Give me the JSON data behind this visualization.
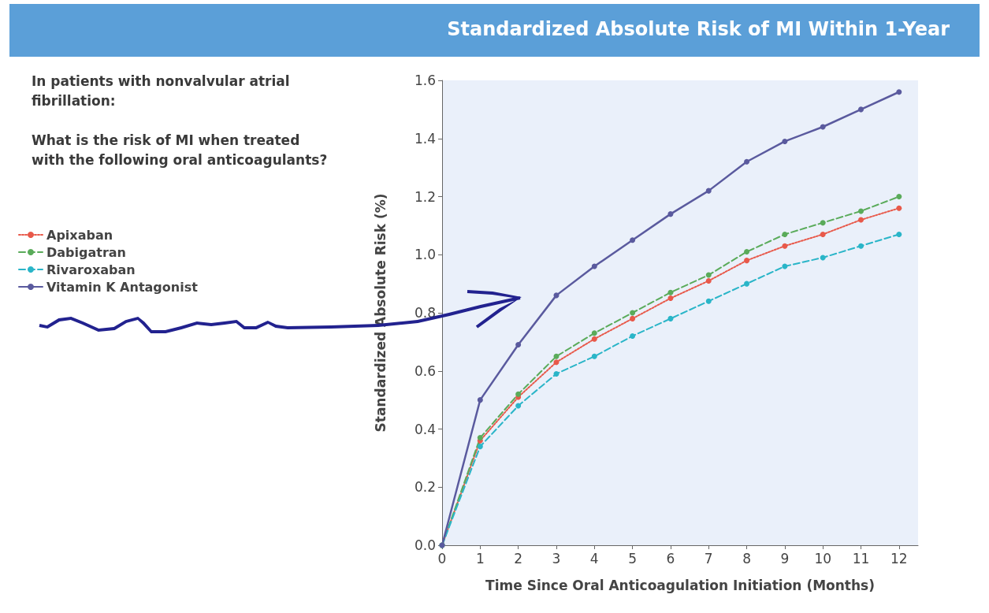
{
  "chart_data": {
    "type": "line",
    "title": "Standardized Absolute Risk of MI Within 1-Year",
    "xlabel": "Time Since Oral Anticoagulation Initiation (Months)",
    "ylabel": "Standardized Absolute Risk (%)",
    "annotations": [
      "In patients with nonvalvular atrial fibrillation:",
      "What is the risk of MI when treated with the following oral anticoagulants?"
    ],
    "x": [
      0,
      1,
      2,
      3,
      4,
      5,
      6,
      7,
      8,
      9,
      10,
      11,
      12
    ],
    "series": [
      {
        "name": "Apixaban",
        "color": "#e8594a",
        "line_style": "dotted",
        "values": [
          0,
          0.36,
          0.51,
          0.63,
          0.71,
          0.78,
          0.85,
          0.91,
          0.98,
          1.03,
          1.07,
          1.12,
          1.16
        ]
      },
      {
        "name": "Dabigatran",
        "color": "#5aab5a",
        "line_style": "dashed",
        "values": [
          0,
          0.37,
          0.52,
          0.65,
          0.73,
          0.8,
          0.87,
          0.93,
          1.01,
          1.07,
          1.11,
          1.15,
          1.2
        ]
      },
      {
        "name": "Rivaroxaban",
        "color": "#2ab5c8",
        "line_style": "dashed",
        "values": [
          0,
          0.34,
          0.48,
          0.59,
          0.65,
          0.72,
          0.78,
          0.84,
          0.9,
          0.96,
          0.99,
          1.03,
          1.07
        ]
      },
      {
        "name": "Vitamin K Antagonist",
        "color": "#5a5a9e",
        "line_style": "solid",
        "values": [
          0,
          0.5,
          0.69,
          0.86,
          0.96,
          1.05,
          1.14,
          1.22,
          1.32,
          1.39,
          1.44,
          1.5,
          1.56
        ]
      }
    ],
    "xlim": [
      0,
      12.5
    ],
    "xticks": [
      0,
      1,
      2,
      3,
      4,
      5,
      6,
      7,
      8,
      9,
      10,
      11,
      12
    ],
    "ylim": [
      0,
      1.6
    ],
    "yticks": [
      {
        "value": 0,
        "label": "0.0"
      },
      {
        "value": 0.2,
        "label": "0.2"
      },
      {
        "value": 0.4,
        "label": "0.4"
      },
      {
        "value": 0.6,
        "label": "0.6"
      },
      {
        "value": 0.8,
        "label": "0.8"
      },
      {
        "value": 1.0,
        "label": "1.0"
      },
      {
        "value": 1.2,
        "label": "1.2"
      },
      {
        "value": 1.4,
        "label": "1.4"
      },
      {
        "value": 1.6,
        "label": "1.6"
      }
    ],
    "grid": false,
    "legend": "left",
    "marker": "circle"
  }
}
